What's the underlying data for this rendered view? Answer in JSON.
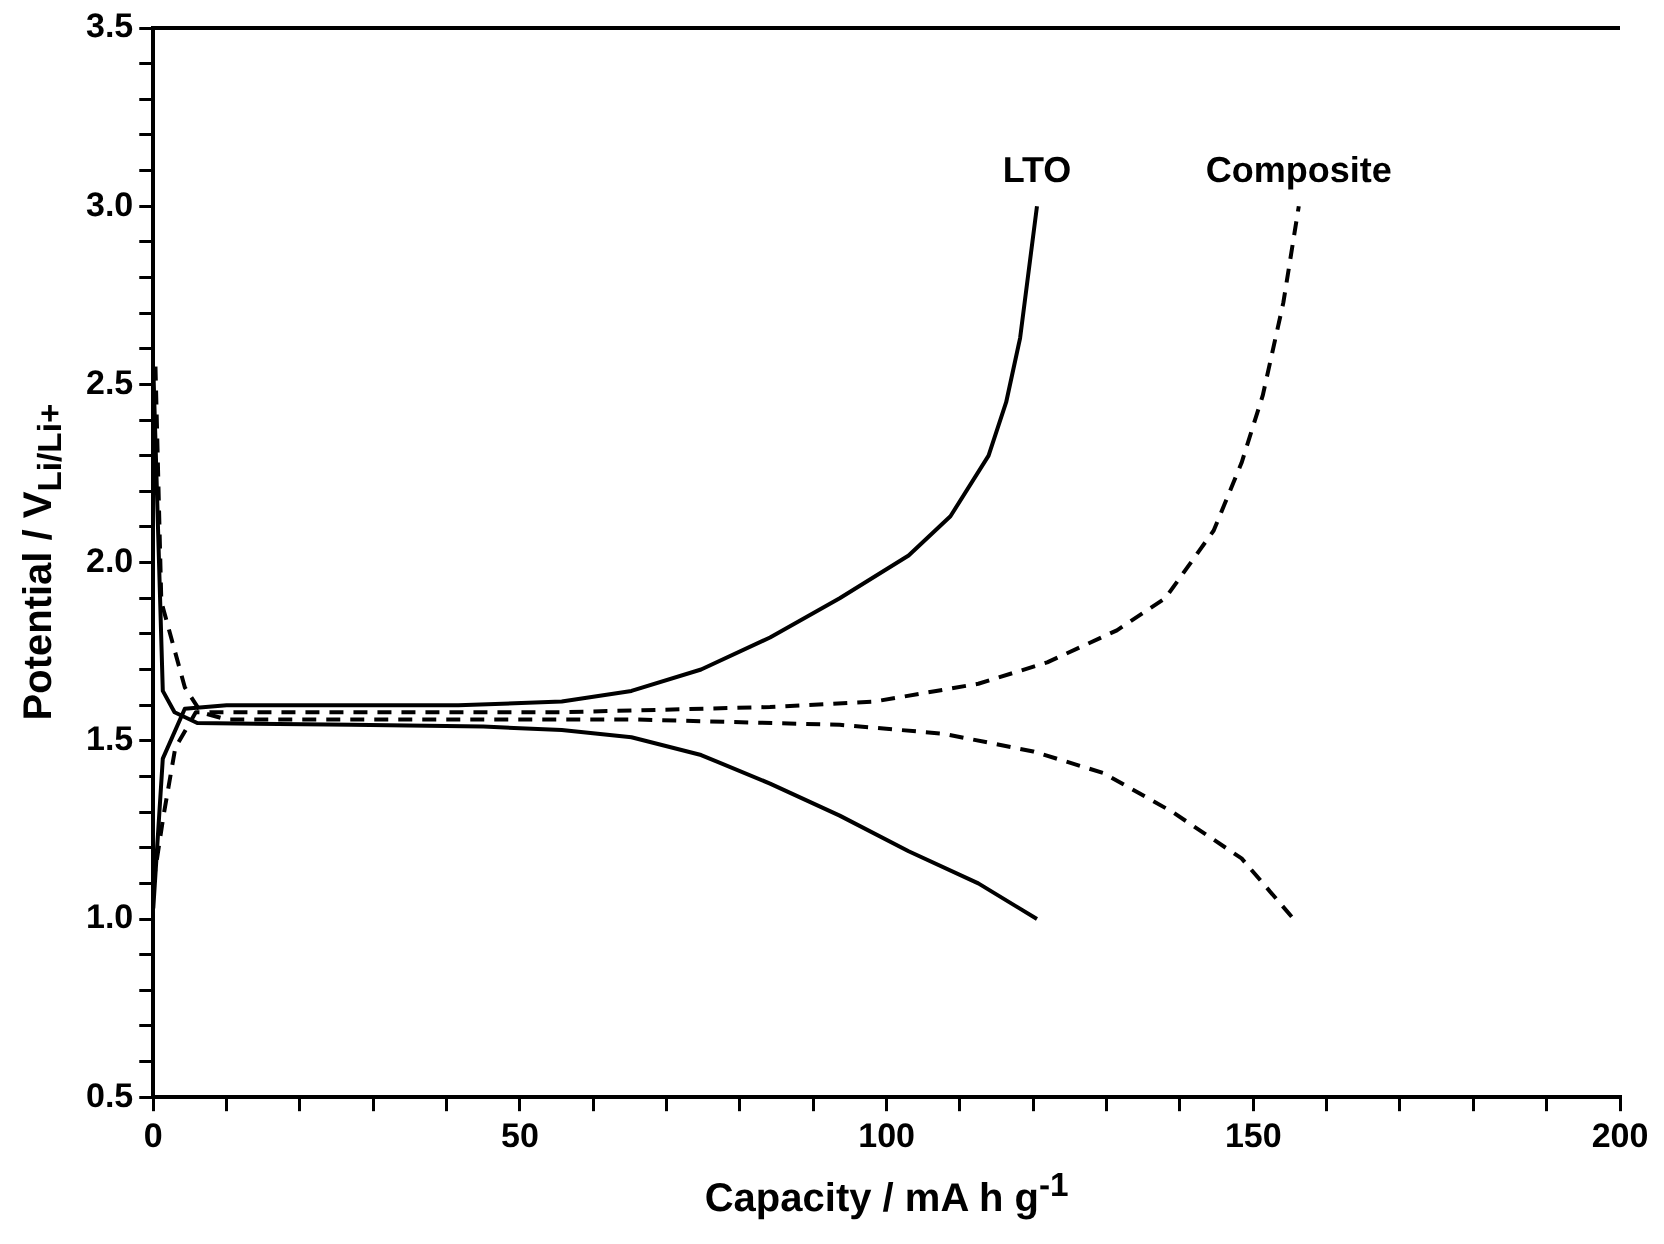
{
  "chart_data": {
    "type": "line",
    "xlabel": "Capacity / mA h g$^{-1}$",
    "ylabel": "Potential / V$_{Li/Li+}$",
    "xlim": [
      0,
      200
    ],
    "ylim": [
      0.5,
      3.5
    ],
    "xticks": [
      0,
      {
        "value": 10,
        "label": null
      },
      {
        "value": 20,
        "label": null
      },
      {
        "value": 30,
        "label": null
      },
      {
        "value": 40,
        "label": null
      },
      50,
      {
        "value": 60,
        "label": null
      },
      {
        "value": 70,
        "label": null
      },
      {
        "value": 80,
        "label": null
      },
      {
        "value": 90,
        "label": null
      },
      100,
      {
        "value": 110,
        "label": null
      },
      {
        "value": 120,
        "label": null
      },
      {
        "value": 130,
        "label": null
      },
      {
        "value": 140,
        "label": null
      },
      150,
      {
        "value": 160,
        "label": null
      },
      {
        "value": 170,
        "label": null
      },
      {
        "value": 180,
        "label": null
      },
      {
        "value": 190,
        "label": null
      },
      200
    ],
    "yticks": [
      0.5,
      {
        "value": 0.6,
        "label": null
      },
      {
        "value": 0.7,
        "label": null
      },
      {
        "value": 0.8,
        "label": null
      },
      {
        "value": 0.9,
        "label": null
      },
      {
        "value": 1,
        "label": "1.0"
      },
      {
        "value": 1.1,
        "label": null
      },
      {
        "value": 1.2,
        "label": null
      },
      {
        "value": 1.3,
        "label": null
      },
      {
        "value": 1.4,
        "label": null
      },
      1.5,
      {
        "value": 1.6,
        "label": null
      },
      {
        "value": 1.7,
        "label": null
      },
      {
        "value": 1.8,
        "label": null
      },
      {
        "value": 1.9,
        "label": null
      },
      {
        "value": 2,
        "label": "2.0"
      },
      {
        "value": 2.1,
        "label": null
      },
      {
        "value": 2.2,
        "label": null
      },
      {
        "value": 2.3,
        "label": null
      },
      {
        "value": 2.4,
        "label": null
      },
      2.5,
      {
        "value": 2.6,
        "label": null
      },
      {
        "value": 2.7,
        "label": null
      },
      {
        "value": 2.8,
        "label": null
      },
      {
        "value": 2.9,
        "label": null
      },
      {
        "value": 3,
        "label": "3.0"
      },
      {
        "value": 3.1,
        "label": null
      },
      {
        "value": 3.2,
        "label": null
      },
      {
        "value": 3.3,
        "label": null
      },
      {
        "value": 3.4,
        "label": null
      },
      3.5
    ],
    "grid": false,
    "legend": false,
    "marker": "none",
    "series": [
      {
        "color": "#000000",
        "line_style": "solid",
        "x": [
          0,
          1.3,
          2.9,
          6,
          27,
          45,
          55.7,
          65.2,
          74.7,
          84.1,
          93.6,
          103,
          112.5,
          120.5
        ],
        "values": [
          2.55,
          1.64,
          1.58,
          1.55,
          1.545,
          1.54,
          1.53,
          1.51,
          1.46,
          1.38,
          1.29,
          1.19,
          1.1,
          1.0
        ]
      },
      {
        "name": "LTO",
        "color": "#000000",
        "line_style": "solid",
        "x": [
          0,
          1.3,
          4.3,
          10,
          27.3,
          41.6,
          55.7,
          65.2,
          74.7,
          84.1,
          93.6,
          103,
          108.7,
          113.9,
          116.3,
          118.2,
          120.5
        ],
        "values": [
          1.03,
          1.45,
          1.59,
          1.6,
          1.6,
          1.6,
          1.61,
          1.64,
          1.7,
          1.79,
          1.9,
          2.02,
          2.13,
          2.3,
          2.45,
          2.63,
          3.0
        ]
      },
      {
        "color": "#000000",
        "line_style": "dashed",
        "x": [
          0.3,
          1.1,
          4.3,
          6.5,
          10,
          27.3,
          65.2,
          93.6,
          107.7,
          120,
          129.5,
          139,
          148.4,
          155.5
        ],
        "values": [
          2.55,
          1.89,
          1.65,
          1.58,
          1.56,
          1.56,
          1.56,
          1.545,
          1.52,
          1.47,
          1.41,
          1.3,
          1.17,
          1.0
        ]
      },
      {
        "name": "Composite",
        "color": "#000000",
        "line_style": "dashed",
        "x": [
          0,
          1.4,
          3,
          5.8,
          27.3,
          55.7,
          84.1,
          98.3,
          112.5,
          121.9,
          131.4,
          138,
          144.6,
          148.4,
          151.3,
          154.1,
          156.2
        ],
        "values": [
          1.1,
          1.29,
          1.48,
          1.58,
          1.58,
          1.58,
          1.595,
          1.61,
          1.66,
          1.72,
          1.81,
          1.9,
          2.09,
          2.28,
          2.47,
          2.73,
          3.0
        ]
      }
    ]
  }
}
